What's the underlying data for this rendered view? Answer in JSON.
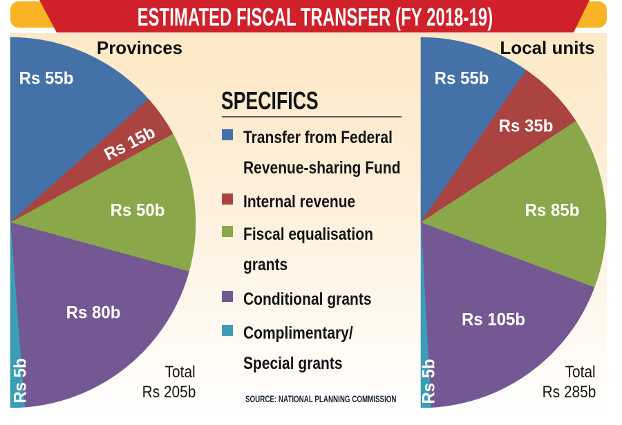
{
  "title": "ESTIMATED FISCAL TRANSFER (FY 2018-19)",
  "colors": {
    "banner_red": "#d0202a",
    "banner_yellow": "#f8b425",
    "label_text": "#ffffff"
  },
  "legend": {
    "heading": "SPECIFICS",
    "items": [
      {
        "lines": [
          "Transfer from Federal",
          "Revenue-sharing Fund"
        ],
        "color": "#4472a8"
      },
      {
        "lines": [
          "Internal revenue"
        ],
        "color": "#ab4340"
      },
      {
        "lines": [
          "Fiscal equalisation",
          "grants"
        ],
        "color": "#8aa74a"
      },
      {
        "lines": [
          "Conditional grants"
        ],
        "color": "#745893"
      },
      {
        "lines": [
          "Complimentary/",
          "Special grants"
        ],
        "color": "#3b9db6"
      }
    ]
  },
  "source": "SOURCE: NATIONAL PLANNING COMMISSION",
  "chart_data": [
    {
      "type": "pie",
      "title": "Provinces",
      "unit": "Rs billion",
      "categories": [
        "Transfer from Federal Revenue-sharing Fund",
        "Internal revenue",
        "Fiscal equalisation grants",
        "Conditional grants",
        "Complimentary/Special grants"
      ],
      "values": [
        55,
        15,
        50,
        80,
        5
      ],
      "labels": [
        "Rs 55b",
        "Rs 15b",
        "Rs 50b",
        "Rs 80b",
        "Rs 5b"
      ],
      "total": 205,
      "total_label": "Total",
      "total_value": "Rs 205b",
      "legend": "center (shared)"
    },
    {
      "type": "pie",
      "title": "Local units",
      "unit": "Rs billion",
      "categories": [
        "Transfer from Federal Revenue-sharing Fund",
        "Internal revenue",
        "Fiscal equalisation grants",
        "Conditional grants",
        "Complimentary/Special grants"
      ],
      "values": [
        55,
        35,
        85,
        105,
        5
      ],
      "labels": [
        "Rs 55b",
        "Rs 35b",
        "Rs 85b",
        "Rs 105b",
        "Rs 5b"
      ],
      "total": 285,
      "total_label": "Total",
      "total_value": "Rs 285b",
      "legend": "center (shared)"
    }
  ]
}
